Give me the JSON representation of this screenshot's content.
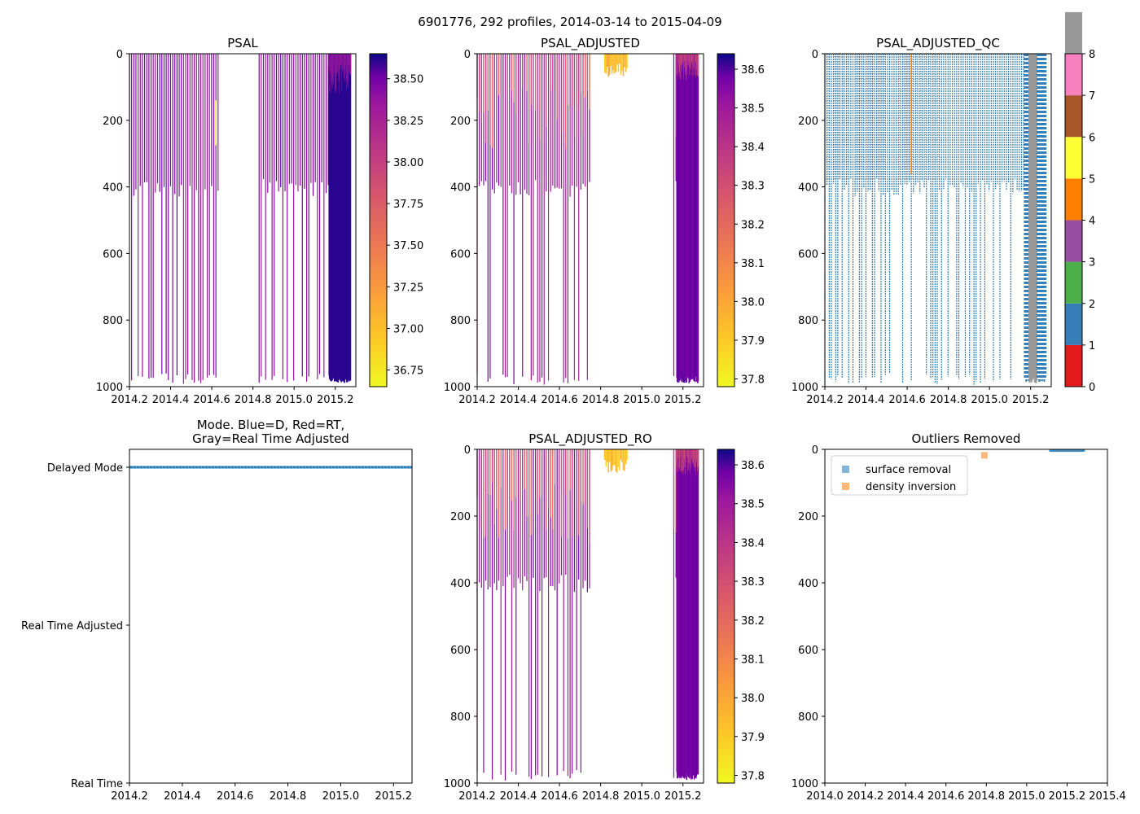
{
  "figure": {
    "suptitle": "6901776, 292 profiles, 2014-03-14 to 2015-04-09"
  },
  "chart_data": [
    {
      "id": "psal",
      "type": "heatmap",
      "title": "PSAL",
      "x_range": [
        2014.2,
        2015.3
      ],
      "y_range": [
        1000,
        0
      ],
      "x_ticks": [
        "2014.2",
        "2014.4",
        "2014.6",
        "2014.8",
        "2015.0",
        "2015.2"
      ],
      "y_ticks": [
        "0",
        "200",
        "400",
        "600",
        "800",
        "1000"
      ],
      "colorbar": {
        "colormap": "plasma_r",
        "min": 36.65,
        "max": 38.65,
        "ticks": [
          "36.75",
          "37.00",
          "37.25",
          "37.50",
          "37.75",
          "38.00",
          "38.25",
          "38.50"
        ]
      },
      "gap": [
        2014.64,
        2014.83
      ]
    },
    {
      "id": "psal-adjusted",
      "type": "heatmap",
      "title": "PSAL_ADJUSTED",
      "x_range": [
        2014.2,
        2015.3
      ],
      "y_range": [
        1000,
        0
      ],
      "x_ticks": [
        "2014.2",
        "2014.4",
        "2014.6",
        "2014.8",
        "2015.0",
        "2015.2"
      ],
      "y_ticks": [
        "0",
        "200",
        "400",
        "600",
        "800",
        "1000"
      ],
      "colorbar": {
        "colormap": "plasma_r",
        "min": 37.78,
        "max": 38.64,
        "ticks": [
          "37.8",
          "37.9",
          "38.0",
          "38.1",
          "38.2",
          "38.3",
          "38.4",
          "38.5",
          "38.6"
        ]
      },
      "gap": [
        2014.75,
        2015.15
      ]
    },
    {
      "id": "psal-adjusted-qc",
      "type": "heatmap",
      "title": "PSAL_ADJUSTED_QC",
      "x_range": [
        2014.2,
        2015.3
      ],
      "y_range": [
        1000,
        0
      ],
      "x_ticks": [
        "2014.2",
        "2014.4",
        "2014.6",
        "2014.8",
        "2015.0",
        "2015.2"
      ],
      "y_ticks": [
        "0",
        "200",
        "400",
        "600",
        "800",
        "1000"
      ],
      "colorbar": {
        "discrete": true,
        "min": 0,
        "max": 8,
        "ticks": [
          "0",
          "1",
          "2",
          "3",
          "4",
          "5",
          "6",
          "7",
          "8"
        ],
        "colors": [
          "#e41a1c",
          "#377eb8",
          "#4daf4a",
          "#984ea3",
          "#ff7f00",
          "#ffff33",
          "#a65628",
          "#f781bf",
          "#999999"
        ]
      }
    },
    {
      "id": "mode",
      "type": "scatter",
      "title": "Mode. Blue=D, Red=RT,",
      "title_line2": "Gray=Real Time Adjusted",
      "x_range": [
        2014.2,
        2015.27
      ],
      "x_ticks": [
        "2014.2",
        "2014.4",
        "2014.6",
        "2014.8",
        "2015.0",
        "2015.2"
      ],
      "y_categories": [
        "Real Time",
        "Real Time Adjusted",
        "Delayed Mode"
      ],
      "series": [
        {
          "name": "Delayed Mode",
          "category": "Delayed Mode",
          "x_start": 2014.2,
          "x_end": 2015.27,
          "color": "#1f77b4"
        }
      ]
    },
    {
      "id": "psal-adjusted-ro",
      "type": "heatmap",
      "title": "PSAL_ADJUSTED_RO",
      "x_range": [
        2014.2,
        2015.3
      ],
      "y_range": [
        1000,
        0
      ],
      "x_ticks": [
        "2014.2",
        "2014.4",
        "2014.6",
        "2014.8",
        "2015.0",
        "2015.2"
      ],
      "y_ticks": [
        "0",
        "200",
        "400",
        "600",
        "800",
        "1000"
      ],
      "colorbar": {
        "colormap": "plasma_r",
        "min": 37.78,
        "max": 38.64,
        "ticks": [
          "37.8",
          "37.9",
          "38.0",
          "38.1",
          "38.2",
          "38.3",
          "38.4",
          "38.5",
          "38.6"
        ]
      },
      "gap": [
        2014.75,
        2015.15
      ]
    },
    {
      "id": "outliers",
      "type": "scatter",
      "title": "Outliers Removed",
      "x_range": [
        2014.0,
        2015.4
      ],
      "y_range": [
        1000,
        0
      ],
      "x_ticks": [
        "2014.0",
        "2014.2",
        "2014.4",
        "2014.6",
        "2014.8",
        "2015.0",
        "2015.2",
        "2015.4"
      ],
      "y_ticks": [
        "0",
        "200",
        "400",
        "600",
        "800",
        "1000"
      ],
      "legend": {
        "placement": "upper-left",
        "entries": [
          {
            "label": "surface removal",
            "color": "#1f77b4"
          },
          {
            "label": "density inversion",
            "color": "#ff7f0e"
          }
        ]
      },
      "series": [
        {
          "name": "surface removal",
          "x_start": 2015.11,
          "x_end": 2015.29,
          "y_min": 0,
          "y_max": 10
        },
        {
          "name": "density inversion",
          "points": [
            [
              2014.79,
              18
            ]
          ]
        }
      ]
    }
  ]
}
